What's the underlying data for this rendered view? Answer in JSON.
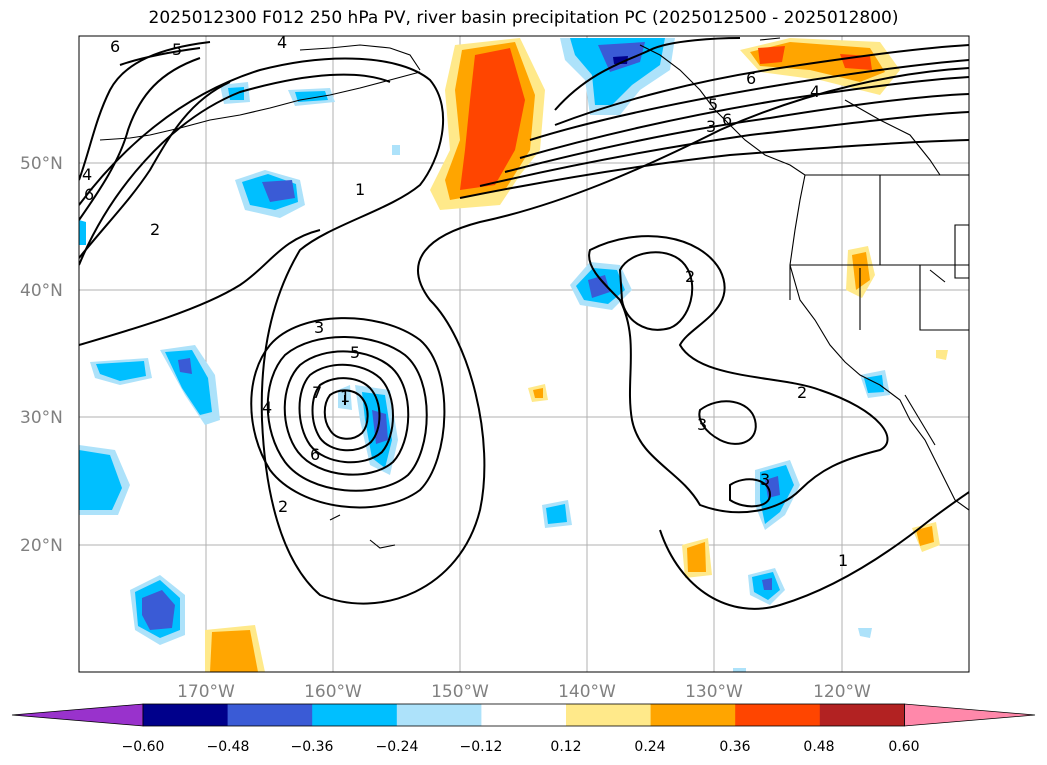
{
  "title": "2025012300 F012 250 hPa PV, river basin precipitation PC (2025012500 - 2025012800)",
  "map": {
    "lat_labels": [
      "50°N",
      "40°N",
      "30°N",
      "20°N"
    ],
    "lon_labels": [
      "170°W",
      "160°W",
      "150°W",
      "140°W",
      "130°W",
      "120°W"
    ],
    "contour_labels": [
      "6",
      "5",
      "4",
      "6",
      "4",
      "5",
      "3",
      "6",
      "4",
      "6",
      "2",
      "1",
      "3",
      "5",
      "4",
      "7",
      "1",
      "6",
      "2",
      "2",
      "2",
      "3",
      "3",
      "1"
    ]
  },
  "colorbar": {
    "ticks": [
      "−0.60",
      "−0.48",
      "−0.36",
      "−0.24",
      "−0.12",
      "0.12",
      "0.24",
      "0.36",
      "0.48",
      "0.60"
    ],
    "colors": [
      "#9932CC",
      "#00008B",
      "#3A5BD6",
      "#00BFFF",
      "#ADE2FA",
      "#FFFFFF",
      "#FFE98A",
      "#FFA500",
      "#FF4500",
      "#B22222",
      "#FF88AA"
    ]
  }
}
